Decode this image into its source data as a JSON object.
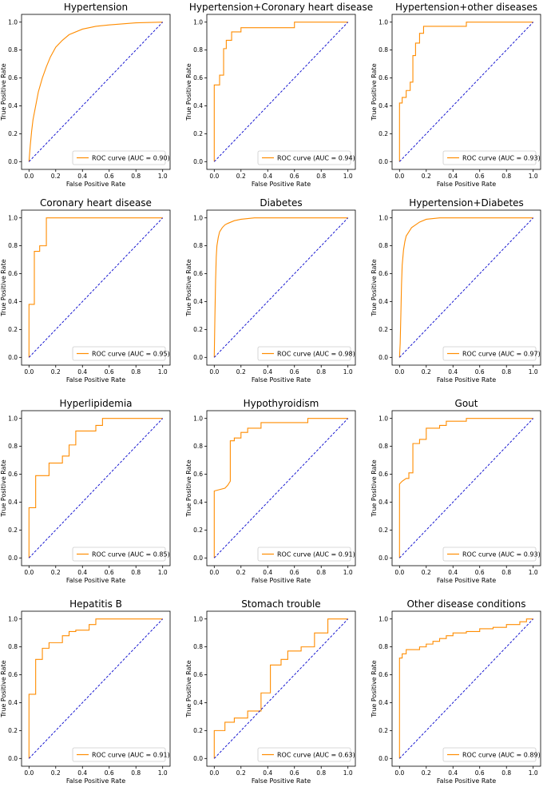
{
  "colors": {
    "roc": "#ff8c00",
    "diagonal": "#0000cc",
    "axes": "#000000"
  },
  "chart_data": [
    {
      "type": "line",
      "title": "Hypertension",
      "xlabel": "False Positive Rate",
      "ylabel": "True Positive Rate",
      "xlim": [
        0,
        1
      ],
      "ylim": [
        0,
        1
      ],
      "xticks": [
        "0.0",
        "0.2",
        "0.4",
        "0.6",
        "0.8",
        "1.0"
      ],
      "yticks": [
        "0.0",
        "0.2",
        "0.4",
        "0.6",
        "0.8",
        "1.0"
      ],
      "legend": "ROC curve (AUC = 0.90)",
      "legend_position": "lower-right",
      "series": [
        {
          "name": "ROC curve",
          "x": [
            0,
            0.01,
            0.02,
            0.03,
            0.05,
            0.07,
            0.1,
            0.13,
            0.16,
            0.2,
            0.25,
            0.3,
            0.4,
            0.5,
            0.6,
            0.8,
            1.0
          ],
          "y": [
            0,
            0.12,
            0.22,
            0.3,
            0.4,
            0.5,
            0.6,
            0.68,
            0.75,
            0.82,
            0.87,
            0.91,
            0.95,
            0.97,
            0.98,
            0.995,
            1.0
          ]
        },
        {
          "name": "diagonal",
          "x": [
            0,
            1
          ],
          "y": [
            0,
            1
          ]
        }
      ]
    },
    {
      "type": "line",
      "title": "Hypertension+Coronary heart disease",
      "xlabel": "False Positive Rate",
      "ylabel": "True Positive Rate",
      "xlim": [
        0,
        1
      ],
      "ylim": [
        0,
        1
      ],
      "xticks": [
        "0.0",
        "0.2",
        "0.4",
        "0.6",
        "0.8",
        "1.0"
      ],
      "yticks": [
        "0.0",
        "0.2",
        "0.4",
        "0.6",
        "0.8",
        "1.0"
      ],
      "legend": "ROC curve (AUC = 0.94)",
      "legend_position": "lower-right",
      "series": [
        {
          "name": "ROC curve",
          "x": [
            0,
            0,
            0.04,
            0.04,
            0.07,
            0.07,
            0.09,
            0.09,
            0.13,
            0.13,
            0.2,
            0.2,
            0.6,
            0.6,
            1.0
          ],
          "y": [
            0,
            0.55,
            0.55,
            0.62,
            0.62,
            0.81,
            0.81,
            0.87,
            0.87,
            0.93,
            0.93,
            0.96,
            0.96,
            1.0,
            1.0
          ]
        },
        {
          "name": "diagonal",
          "x": [
            0,
            1
          ],
          "y": [
            0,
            1
          ]
        }
      ]
    },
    {
      "type": "line",
      "title": "Hypertension+other diseases",
      "xlabel": "False Positive Rate",
      "ylabel": "True Positive Rate",
      "xlim": [
        0,
        1
      ],
      "ylim": [
        0,
        1
      ],
      "xticks": [
        "0.0",
        "0.2",
        "0.4",
        "0.6",
        "0.8",
        "1.0"
      ],
      "yticks": [
        "0.0",
        "0.2",
        "0.4",
        "0.6",
        "0.8",
        "1.0"
      ],
      "legend": "ROC curve (AUC = 0.93)",
      "legend_position": "lower-right",
      "series": [
        {
          "name": "ROC curve",
          "x": [
            0,
            0,
            0.02,
            0.02,
            0.05,
            0.05,
            0.08,
            0.08,
            0.1,
            0.1,
            0.12,
            0.12,
            0.15,
            0.15,
            0.18,
            0.18,
            0.5,
            0.5,
            1.0
          ],
          "y": [
            0,
            0.42,
            0.42,
            0.46,
            0.46,
            0.51,
            0.51,
            0.57,
            0.57,
            0.76,
            0.76,
            0.85,
            0.85,
            0.92,
            0.92,
            0.97,
            0.97,
            1.0,
            1.0
          ]
        },
        {
          "name": "diagonal",
          "x": [
            0,
            1
          ],
          "y": [
            0,
            1
          ]
        }
      ]
    },
    {
      "type": "line",
      "title": "Coronary heart disease",
      "xlabel": "False Positive Rate",
      "ylabel": "True Positive Rate",
      "xlim": [
        0,
        1
      ],
      "ylim": [
        0,
        1
      ],
      "xticks": [
        "0.0",
        "0.2",
        "0.4",
        "0.6",
        "0.8",
        "1.0"
      ],
      "yticks": [
        "0.0",
        "0.2",
        "0.4",
        "0.6",
        "0.8",
        "1.0"
      ],
      "legend": "ROC curve (AUC = 0.95)",
      "legend_position": "lower-right",
      "series": [
        {
          "name": "ROC curve",
          "x": [
            0,
            0,
            0.04,
            0.04,
            0.08,
            0.08,
            0.13,
            0.13,
            1.0
          ],
          "y": [
            0,
            0.38,
            0.38,
            0.76,
            0.76,
            0.8,
            0.8,
            1.0,
            1.0
          ]
        },
        {
          "name": "diagonal",
          "x": [
            0,
            1
          ],
          "y": [
            0,
            1
          ]
        }
      ]
    },
    {
      "type": "line",
      "title": "Diabetes",
      "xlabel": "False Positive Rate",
      "ylabel": "True Positive Rate",
      "xlim": [
        0,
        1
      ],
      "ylim": [
        0,
        1
      ],
      "xticks": [
        "0.0",
        "0.2",
        "0.4",
        "0.6",
        "0.8",
        "1.0"
      ],
      "yticks": [
        "0.0",
        "0.2",
        "0.4",
        "0.6",
        "0.8",
        "1.0"
      ],
      "legend": "ROC curve (AUC = 0.98)",
      "legend_position": "lower-right",
      "series": [
        {
          "name": "ROC curve",
          "x": [
            0,
            0.005,
            0.01,
            0.015,
            0.02,
            0.03,
            0.04,
            0.06,
            0.08,
            0.1,
            0.15,
            0.2,
            0.3,
            0.5,
            1.0
          ],
          "y": [
            0,
            0.3,
            0.55,
            0.72,
            0.8,
            0.86,
            0.9,
            0.93,
            0.95,
            0.96,
            0.98,
            0.99,
            1.0,
            1.0,
            1.0
          ]
        },
        {
          "name": "diagonal",
          "x": [
            0,
            1
          ],
          "y": [
            0,
            1
          ]
        }
      ]
    },
    {
      "type": "line",
      "title": "Hypertension+Diabetes",
      "xlabel": "False Positive Rate",
      "ylabel": "True Positive Rate",
      "xlim": [
        0,
        1
      ],
      "ylim": [
        0,
        1
      ],
      "xticks": [
        "0.0",
        "0.2",
        "0.4",
        "0.6",
        "0.8",
        "1.0"
      ],
      "yticks": [
        "0.0",
        "0.2",
        "0.4",
        "0.6",
        "0.8",
        "1.0"
      ],
      "legend": "ROC curve (AUC = 0.97)",
      "legend_position": "lower-right",
      "series": [
        {
          "name": "ROC curve",
          "x": [
            0,
            0.005,
            0.01,
            0.015,
            0.02,
            0.03,
            0.04,
            0.05,
            0.07,
            0.09,
            0.12,
            0.15,
            0.2,
            0.3,
            0.5,
            1.0
          ],
          "y": [
            0,
            0.1,
            0.3,
            0.52,
            0.66,
            0.77,
            0.83,
            0.87,
            0.9,
            0.93,
            0.95,
            0.97,
            0.99,
            1.0,
            1.0,
            1.0
          ]
        },
        {
          "name": "diagonal",
          "x": [
            0,
            1
          ],
          "y": [
            0,
            1
          ]
        }
      ]
    },
    {
      "type": "line",
      "title": "Hyperlipidemia",
      "xlabel": "False Positive Rate",
      "ylabel": "True Positive Rate",
      "xlim": [
        0,
        1
      ],
      "ylim": [
        0,
        1
      ],
      "xticks": [
        "0.0",
        "0.2",
        "0.4",
        "0.6",
        "0.8",
        "1.0"
      ],
      "yticks": [
        "0.0",
        "0.2",
        "0.4",
        "0.6",
        "0.8",
        "1.0"
      ],
      "legend": "ROC curve (AUC = 0.85)",
      "legend_position": "lower-right",
      "series": [
        {
          "name": "ROC curve",
          "x": [
            0,
            0,
            0.05,
            0.05,
            0.15,
            0.15,
            0.25,
            0.25,
            0.3,
            0.3,
            0.35,
            0.35,
            0.5,
            0.5,
            0.55,
            0.55,
            1.0
          ],
          "y": [
            0,
            0.36,
            0.36,
            0.59,
            0.59,
            0.68,
            0.68,
            0.73,
            0.73,
            0.81,
            0.81,
            0.91,
            0.91,
            0.95,
            0.95,
            1.0,
            1.0
          ]
        },
        {
          "name": "diagonal",
          "x": [
            0,
            1
          ],
          "y": [
            0,
            1
          ]
        }
      ]
    },
    {
      "type": "line",
      "title": "Hypothyroidism",
      "xlabel": "False Positive Rate",
      "ylabel": "True Positive Rate",
      "xlim": [
        0,
        1
      ],
      "ylim": [
        0,
        1
      ],
      "xticks": [
        "0.0",
        "0.2",
        "0.4",
        "0.6",
        "0.8",
        "1.0"
      ],
      "yticks": [
        "0.0",
        "0.2",
        "0.4",
        "0.6",
        "0.8",
        "1.0"
      ],
      "legend": "ROC curve (AUC = 0.91)",
      "legend_position": "lower-right",
      "series": [
        {
          "name": "ROC curve",
          "x": [
            0,
            0,
            0.08,
            0.1,
            0.12,
            0.12,
            0.15,
            0.15,
            0.2,
            0.2,
            0.25,
            0.25,
            0.35,
            0.35,
            0.7,
            0.7,
            1.0
          ],
          "y": [
            0,
            0.48,
            0.5,
            0.52,
            0.55,
            0.84,
            0.84,
            0.86,
            0.86,
            0.9,
            0.9,
            0.93,
            0.93,
            0.97,
            0.97,
            1.0,
            1.0
          ]
        },
        {
          "name": "diagonal",
          "x": [
            0,
            1
          ],
          "y": [
            0,
            1
          ]
        }
      ]
    },
    {
      "type": "line",
      "title": "Gout",
      "xlabel": "False Positive Rate",
      "ylabel": "True Positive Rate",
      "xlim": [
        0,
        1
      ],
      "ylim": [
        0,
        1
      ],
      "xticks": [
        "0.0",
        "0.2",
        "0.4",
        "0.6",
        "0.8",
        "1.0"
      ],
      "yticks": [
        "0.0",
        "0.2",
        "0.4",
        "0.6",
        "0.8",
        "1.0"
      ],
      "legend": "ROC curve (AUC = 0.93)",
      "legend_position": "lower-right",
      "series": [
        {
          "name": "ROC curve",
          "x": [
            0,
            0,
            0.02,
            0.05,
            0.07,
            0.07,
            0.1,
            0.1,
            0.15,
            0.15,
            0.2,
            0.2,
            0.3,
            0.3,
            0.35,
            0.35,
            0.5,
            0.5,
            1.0
          ],
          "y": [
            0,
            0.53,
            0.55,
            0.57,
            0.57,
            0.61,
            0.61,
            0.82,
            0.82,
            0.85,
            0.85,
            0.93,
            0.93,
            0.95,
            0.95,
            0.98,
            0.98,
            1.0,
            1.0
          ]
        },
        {
          "name": "diagonal",
          "x": [
            0,
            1
          ],
          "y": [
            0,
            1
          ]
        }
      ]
    },
    {
      "type": "line",
      "title": "Hepatitis B",
      "xlabel": "False Positive Rate",
      "ylabel": "True Positive Rate",
      "xlim": [
        0,
        1
      ],
      "ylim": [
        0,
        1
      ],
      "xticks": [
        "0.0",
        "0.2",
        "0.4",
        "0.6",
        "0.8",
        "1.0"
      ],
      "yticks": [
        "0.0",
        "0.2",
        "0.4",
        "0.6",
        "0.8",
        "1.0"
      ],
      "legend": "ROC curve (AUC = 0.91)",
      "legend_position": "lower-right",
      "series": [
        {
          "name": "ROC curve",
          "x": [
            0,
            0,
            0.05,
            0.05,
            0.1,
            0.1,
            0.15,
            0.15,
            0.25,
            0.25,
            0.3,
            0.3,
            0.35,
            0.35,
            0.45,
            0.45,
            0.5,
            0.5,
            1.0
          ],
          "y": [
            0,
            0.46,
            0.46,
            0.71,
            0.71,
            0.79,
            0.79,
            0.83,
            0.83,
            0.88,
            0.88,
            0.91,
            0.91,
            0.92,
            0.92,
            0.96,
            0.96,
            1.0,
            1.0
          ]
        },
        {
          "name": "diagonal",
          "x": [
            0,
            1
          ],
          "y": [
            0,
            1
          ]
        }
      ]
    },
    {
      "type": "line",
      "title": "Stomach trouble",
      "xlabel": "False Positive Rate",
      "ylabel": "True Positive Rate",
      "xlim": [
        0,
        1
      ],
      "ylim": [
        0,
        1
      ],
      "xticks": [
        "0.0",
        "0.2",
        "0.4",
        "0.6",
        "0.8",
        "1.0"
      ],
      "yticks": [
        "0.0",
        "0.2",
        "0.4",
        "0.6",
        "0.8",
        "1.0"
      ],
      "legend": "ROC curve (AUC = 0.63)",
      "legend_position": "lower-right",
      "series": [
        {
          "name": "ROC curve",
          "x": [
            0,
            0,
            0.08,
            0.08,
            0.15,
            0.15,
            0.25,
            0.25,
            0.35,
            0.35,
            0.42,
            0.42,
            0.5,
            0.5,
            0.55,
            0.55,
            0.65,
            0.65,
            0.75,
            0.75,
            0.85,
            0.85,
            1.0,
            1.0
          ],
          "y": [
            0,
            0.2,
            0.2,
            0.26,
            0.26,
            0.29,
            0.29,
            0.34,
            0.34,
            0.47,
            0.47,
            0.67,
            0.67,
            0.71,
            0.71,
            0.77,
            0.77,
            0.8,
            0.8,
            0.9,
            0.9,
            1.0,
            1.0,
            1.0
          ]
        },
        {
          "name": "diagonal",
          "x": [
            0,
            1
          ],
          "y": [
            0,
            1
          ]
        }
      ]
    },
    {
      "type": "line",
      "title": "Other disease conditions",
      "xlabel": "False Positive Rate",
      "ylabel": "True Positive Rate",
      "xlim": [
        0,
        1
      ],
      "ylim": [
        0,
        1
      ],
      "xticks": [
        "0.0",
        "0.2",
        "0.4",
        "0.6",
        "0.8",
        "1.0"
      ],
      "yticks": [
        "0.0",
        "0.2",
        "0.4",
        "0.6",
        "0.8",
        "1.0"
      ],
      "legend": "ROC curve (AUC = 0.89)",
      "legend_position": "lower-right",
      "series": [
        {
          "name": "ROC curve",
          "x": [
            0,
            0,
            0.02,
            0.02,
            0.05,
            0.05,
            0.15,
            0.15,
            0.2,
            0.2,
            0.25,
            0.25,
            0.3,
            0.3,
            0.35,
            0.35,
            0.4,
            0.4,
            0.5,
            0.5,
            0.6,
            0.6,
            0.7,
            0.7,
            0.8,
            0.8,
            0.9,
            0.9,
            0.95,
            0.95,
            1.0
          ],
          "y": [
            0,
            0.72,
            0.72,
            0.75,
            0.75,
            0.78,
            0.78,
            0.8,
            0.8,
            0.82,
            0.82,
            0.84,
            0.84,
            0.86,
            0.86,
            0.88,
            0.88,
            0.9,
            0.9,
            0.91,
            0.91,
            0.93,
            0.93,
            0.94,
            0.94,
            0.96,
            0.96,
            0.98,
            0.98,
            1.0,
            1.0
          ]
        },
        {
          "name": "diagonal",
          "x": [
            0,
            1
          ],
          "y": [
            0,
            1
          ]
        }
      ]
    }
  ]
}
